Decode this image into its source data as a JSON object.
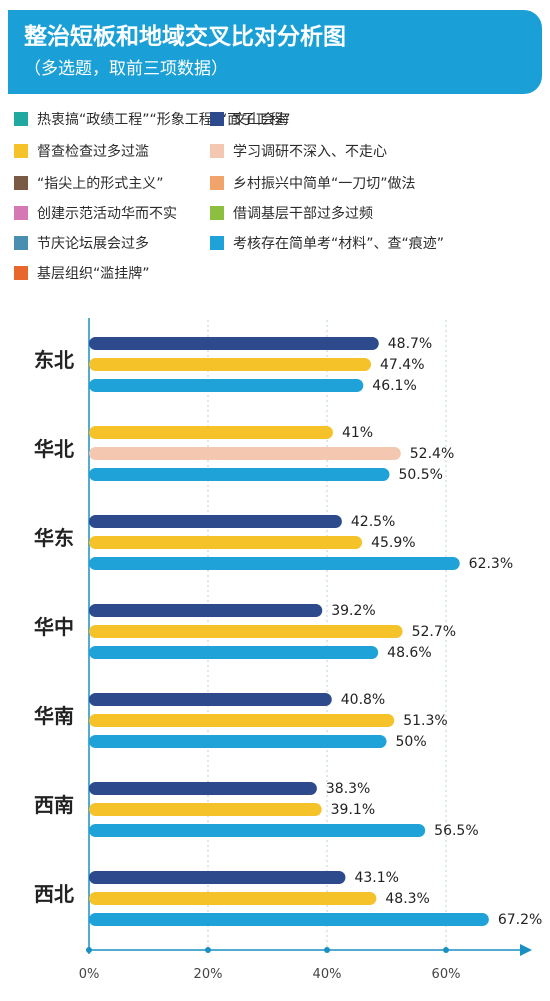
{
  "header": {
    "title": "整治短板和地域交叉比对分析图",
    "subtitle": "（多选题，取前三项数据）"
  },
  "legend": [
    {
      "label": "热衷搞“政绩工程”“形象工程”“面子工程”",
      "color": "#1fa9a0"
    },
    {
      "label": "文山会海",
      "color": "#2d4a8c"
    },
    {
      "label": "督查检查过多过滥",
      "color": "#f6c22a"
    },
    {
      "label": "学习调研不深入、不走心",
      "color": "#f3c7b0"
    },
    {
      "label": "“指尖上的形式主义”",
      "color": "#7a5a44"
    },
    {
      "label": "乡村振兴中简单“一刀切”做法",
      "color": "#f0a46c"
    },
    {
      "label": "创建示范活动华而不实",
      "color": "#d678b4"
    },
    {
      "label": "借调基层干部过多过频",
      "color": "#8cbf3f"
    },
    {
      "label": "节庆论坛展会过多",
      "color": "#4b8fb0"
    },
    {
      "label": "考核存在简单考“材料”、查“痕迹”",
      "color": "#1ea2d8"
    },
    {
      "label": "基层组织“滥挂牌”",
      "color": "#e8672c"
    }
  ],
  "chart_data": {
    "type": "bar",
    "orientation": "horizontal",
    "xlim": [
      0,
      65
    ],
    "xticks": [
      0,
      20,
      40,
      60
    ],
    "xtick_labels": [
      "0%",
      "20%",
      "40%",
      "60%"
    ],
    "groups": [
      {
        "name": "东北",
        "bars": [
          {
            "series": "文山会海",
            "value": 48.7,
            "label": "48.7%",
            "color": "#2d4a8c"
          },
          {
            "series": "督查检查过多过滥",
            "value": 47.4,
            "label": "47.4%",
            "color": "#f6c22a"
          },
          {
            "series": "考核存在简单考“材料”、查“痕迹”",
            "value": 46.1,
            "label": "46.1%",
            "color": "#1ea2d8"
          }
        ]
      },
      {
        "name": "华北",
        "bars": [
          {
            "series": "督查检查过多过滥",
            "value": 41,
            "label": "41%",
            "color": "#f6c22a"
          },
          {
            "series": "学习调研不深入、不走心",
            "value": 52.4,
            "label": "52.4%",
            "color": "#f3c7b0"
          },
          {
            "series": "考核存在简单考“材料”、查“痕迹”",
            "value": 50.5,
            "label": "50.5%",
            "color": "#1ea2d8"
          }
        ]
      },
      {
        "name": "华东",
        "bars": [
          {
            "series": "文山会海",
            "value": 42.5,
            "label": "42.5%",
            "color": "#2d4a8c"
          },
          {
            "series": "督查检查过多过滥",
            "value": 45.9,
            "label": "45.9%",
            "color": "#f6c22a"
          },
          {
            "series": "考核存在简单考“材料”、查“痕迹”",
            "value": 62.3,
            "label": "62.3%",
            "color": "#1ea2d8"
          }
        ]
      },
      {
        "name": "华中",
        "bars": [
          {
            "series": "文山会海",
            "value": 39.2,
            "label": "39.2%",
            "color": "#2d4a8c"
          },
          {
            "series": "督查检查过多过滥",
            "value": 52.7,
            "label": "52.7%",
            "color": "#f6c22a"
          },
          {
            "series": "考核存在简单考“材料”、查“痕迹”",
            "value": 48.6,
            "label": "48.6%",
            "color": "#1ea2d8"
          }
        ]
      },
      {
        "name": "华南",
        "bars": [
          {
            "series": "文山会海",
            "value": 40.8,
            "label": "40.8%",
            "color": "#2d4a8c"
          },
          {
            "series": "督查检查过多过滥",
            "value": 51.3,
            "label": "51.3%",
            "color": "#f6c22a"
          },
          {
            "series": "考核存在简单考“材料”、查“痕迹”",
            "value": 50,
            "label": "50%",
            "color": "#1ea2d8"
          }
        ]
      },
      {
        "name": "西南",
        "bars": [
          {
            "series": "文山会海",
            "value": 38.3,
            "label": "38.3%",
            "color": "#2d4a8c"
          },
          {
            "series": "督查检查过多过滥",
            "value": 39.1,
            "label": "39.1%",
            "color": "#f6c22a"
          },
          {
            "series": "考核存在简单考“材料”、查“痕迹”",
            "value": 56.5,
            "label": "56.5%",
            "color": "#1ea2d8"
          }
        ]
      },
      {
        "name": "西北",
        "bars": [
          {
            "series": "文山会海",
            "value": 43.1,
            "label": "43.1%",
            "color": "#2d4a8c"
          },
          {
            "series": "督查检查过多过滥",
            "value": 48.3,
            "label": "48.3%",
            "color": "#f6c22a"
          },
          {
            "series": "考核存在简单考“材料”、查“痕迹”",
            "value": 67.2,
            "label": "67.2%",
            "color": "#1ea2d8"
          }
        ]
      }
    ]
  }
}
